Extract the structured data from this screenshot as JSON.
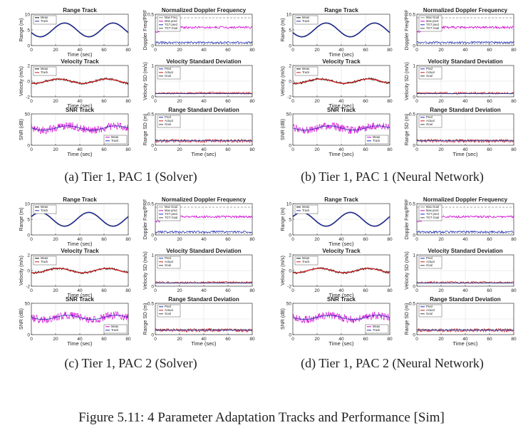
{
  "figure_caption": "Figure 5.11: 4 Parameter Adaptation Tracks and Performance [Sim]",
  "colors": {
    "blue": "#1f2fb5",
    "red": "#d21a1a",
    "magenta": "#d100d1",
    "black": "#111111",
    "grid": "#dddddd"
  },
  "panels": [
    {
      "caption": "(a) Tier 1, PAC 1 (Solver)",
      "plots": {
        "range": {
          "title": "Range Track",
          "ylabel": "Range (m)",
          "xlabel": "Time (sec)",
          "yticks": [
            "0",
            "5",
            "10"
          ],
          "legend": [
            "Meas",
            "Track"
          ]
        },
        "doppler": {
          "title": "Normalized Doppler Frequency",
          "ylabel": "Doppler Freq/PRF",
          "xlabel": "",
          "yticks": [
            "0",
            "0.5"
          ],
          "legend": [
            "Max Freq",
            "Max pred",
            "TGT pred",
            "TGT Goal"
          ]
        },
        "velocity": {
          "title": "Velocity Track",
          "ylabel": "Velocity (m/s)",
          "xlabel": "Time (sec)",
          "yticks": [
            "-2",
            "0",
            "2"
          ],
          "legend": [
            "Meas",
            "Track"
          ]
        },
        "velsd": {
          "title": "Velocity Standard Deviation",
          "ylabel": "Velocity SD (m/s)",
          "xlabel": "",
          "yticks": [
            "0",
            "1"
          ],
          "legend": [
            "Pred",
            "Actual",
            "Goal"
          ]
        },
        "snr": {
          "title": "SNR Track",
          "ylabel": "SNR (dB)",
          "xlabel": "Time (sec)",
          "yticks": [
            "0",
            "50"
          ],
          "legend": [
            "Meas",
            "Track"
          ]
        },
        "rangesd": {
          "title": "Range Standard Deviation",
          "ylabel": "Range SD (m)",
          "xlabel": "Time (sec)",
          "yticks": [
            "0",
            "0.5"
          ],
          "legend": [
            "Pred",
            "Actual",
            "Goal"
          ]
        }
      },
      "xticks": [
        "0",
        "20",
        "40",
        "60",
        "80"
      ]
    },
    {
      "caption": "(b) Tier 1, PAC 1 (Neural Network)",
      "plots": {
        "range": {
          "title": "Range Track",
          "ylabel": "Range (m)",
          "xlabel": "Time (sec)",
          "yticks": [
            "0",
            "5",
            "10"
          ],
          "legend": [
            "Meas",
            "Track"
          ]
        },
        "doppler": {
          "title": "Normalized Doppler Frequency",
          "ylabel": "Doppler Freq/PRF",
          "xlabel": "",
          "yticks": [
            "0",
            "0.5"
          ],
          "legend": [
            "Max Goal",
            "Max pred",
            "TGT pred",
            "TGT Goal"
          ]
        },
        "velocity": {
          "title": "Velocity Track",
          "ylabel": "Velocity (m/s)",
          "xlabel": "Time (sec)",
          "yticks": [
            "-2",
            "0",
            "2"
          ],
          "legend": [
            "Meas",
            "Track"
          ]
        },
        "velsd": {
          "title": "Velocity Standard Deviation",
          "ylabel": "Velocity SD (m/s)",
          "xlabel": "",
          "yticks": [
            "0",
            "1"
          ],
          "legend": [
            "Pred",
            "Actual",
            "Goal"
          ]
        },
        "snr": {
          "title": "SNR Track",
          "ylabel": "SNR (dB)",
          "xlabel": "Time (sec)",
          "yticks": [
            "0",
            "50"
          ],
          "legend": [
            "Meas",
            "Track"
          ]
        },
        "rangesd": {
          "title": "Range Standard Deviation",
          "ylabel": "Range SD (m)",
          "xlabel": "Time (sec)",
          "yticks": [
            "0",
            "0.5"
          ],
          "legend": [
            "Pred",
            "Actual",
            "Goal"
          ]
        }
      },
      "xticks": [
        "0",
        "20",
        "40",
        "60",
        "80"
      ]
    },
    {
      "caption": "(c) Tier 1, PAC 2 (Solver)",
      "plots": {
        "range": {
          "title": "Range Track",
          "ylabel": "Range (m)",
          "xlabel": "Time (sec)",
          "yticks": [
            "0",
            "5",
            "10"
          ],
          "legend": [
            "Meas",
            "Track"
          ]
        },
        "doppler": {
          "title": "Normalized Doppler Frequency",
          "ylabel": "Doppler Freq/PRF",
          "xlabel": "",
          "yticks": [
            "0",
            "0.5"
          ],
          "legend": [
            "Max Goal",
            "Max pred",
            "TGT pred",
            "TGT Goal"
          ]
        },
        "velocity": {
          "title": "Velocity Track",
          "ylabel": "Velocity (m/s)",
          "xlabel": "Time (sec)",
          "yticks": [
            "-2",
            "0",
            "2"
          ],
          "legend": [
            "Meas",
            "Track"
          ]
        },
        "velsd": {
          "title": "Velocity Standard Deviation",
          "ylabel": "Velocity SD (m/s)",
          "xlabel": "",
          "yticks": [
            "0",
            "1"
          ],
          "legend": [
            "Pred",
            "Actual",
            "Goal"
          ]
        },
        "snr": {
          "title": "SNR Track",
          "ylabel": "SNR (dB)",
          "xlabel": "Time (sec)",
          "yticks": [
            "0",
            "50"
          ],
          "legend": [
            "Meas",
            "Track"
          ]
        },
        "rangesd": {
          "title": "Range Standard Deviation",
          "ylabel": "Range SD (m)",
          "xlabel": "Time (sec)",
          "yticks": [
            "0",
            "0.5"
          ],
          "legend": [
            "Pred",
            "Actual",
            "Goal"
          ]
        }
      },
      "xticks": [
        "0",
        "20",
        "40",
        "60",
        "80"
      ]
    },
    {
      "caption": "(d) Tier 1, PAC 2 (Neural Network)",
      "plots": {
        "range": {
          "title": "Range Track",
          "ylabel": "Range (m)",
          "xlabel": "Time (sec)",
          "yticks": [
            "0",
            "5",
            "10"
          ],
          "legend": [
            "Meas",
            "Track"
          ]
        },
        "doppler": {
          "title": "Normalized Doppler Frequency",
          "ylabel": "Doppler Freq/PRF",
          "xlabel": "",
          "yticks": [
            "0",
            "0.5"
          ],
          "legend": [
            "Max Goal",
            "Max pred",
            "TGT pred",
            "TGT Goal"
          ]
        },
        "velocity": {
          "title": "Velocity Track",
          "ylabel": "Velocity (m/s)",
          "xlabel": "Time (sec)",
          "yticks": [
            "-2",
            "0",
            "2"
          ],
          "legend": [
            "Meas",
            "Track"
          ]
        },
        "velsd": {
          "title": "Velocity Standard Deviation",
          "ylabel": "Velocity SD (m/s)",
          "xlabel": "",
          "yticks": [
            "0",
            "1"
          ],
          "legend": [
            "Pred",
            "Actual",
            "Goal"
          ]
        },
        "snr": {
          "title": "SNR Track",
          "ylabel": "SNR (dB)",
          "xlabel": "Time (sec)",
          "yticks": [
            "0",
            "50"
          ],
          "legend": [
            "Meas",
            "Track"
          ]
        },
        "rangesd": {
          "title": "Range Standard Deviation",
          "ylabel": "Range SD (m)",
          "xlabel": "Time (sec)",
          "yticks": [
            "0",
            "0.5"
          ],
          "legend": [
            "Pred",
            "Actual",
            "Goal"
          ]
        }
      },
      "xticks": [
        "0",
        "20",
        "40",
        "60",
        "80"
      ]
    }
  ]
}
